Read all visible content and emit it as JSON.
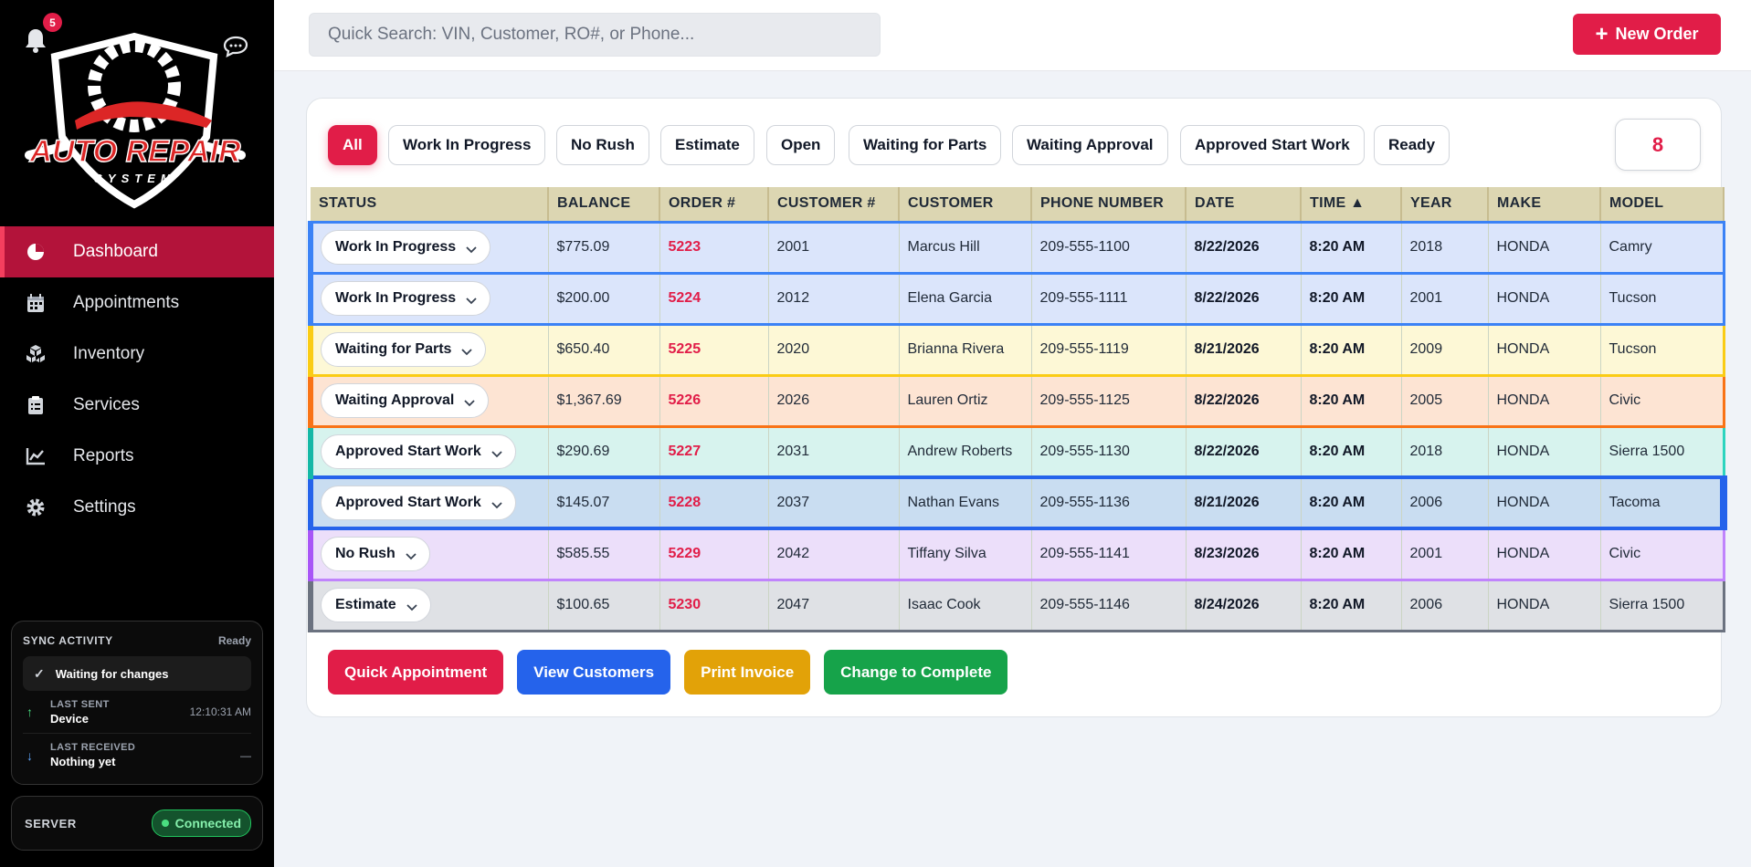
{
  "notifications": {
    "count": "5"
  },
  "brand": {
    "line1": "AUTO REPAIR",
    "line2": "SYSTEM"
  },
  "nav": [
    {
      "label": "Dashboard",
      "icon": "pie-chart-icon",
      "active": true
    },
    {
      "label": "Appointments",
      "icon": "calendar-icon"
    },
    {
      "label": "Inventory",
      "icon": "boxes-icon"
    },
    {
      "label": "Services",
      "icon": "clipboard-icon"
    },
    {
      "label": "Reports",
      "icon": "line-chart-icon"
    },
    {
      "label": "Settings",
      "icon": "gear-icon"
    }
  ],
  "sync": {
    "title": "SYNC ACTIVITY",
    "state": "Ready",
    "message": "Waiting for changes",
    "last_sent_label": "LAST SENT",
    "last_sent_value": "Device",
    "last_sent_time": "12:10:31 AM",
    "last_received_label": "LAST RECEIVED",
    "last_received_value": "Nothing yet",
    "last_received_time": "—"
  },
  "server": {
    "label": "SERVER",
    "status": "Connected"
  },
  "search": {
    "placeholder": "Quick Search: VIN, Customer, RO#, or Phone..."
  },
  "new_order": {
    "label": "New Order"
  },
  "filters": [
    "All",
    "Work In Progress",
    "No Rush",
    "Estimate",
    "Open",
    "Waiting for Parts",
    "Waiting Approval",
    "Approved Start Work",
    "Ready"
  ],
  "active_filter": "All",
  "order_count": "8",
  "columns": [
    "STATUS",
    "BALANCE",
    "ORDER #",
    "CUSTOMER #",
    "CUSTOMER",
    "PHONE NUMBER",
    "DATE",
    "TIME ▲",
    "YEAR",
    "MAKE",
    "MODEL"
  ],
  "rows": [
    {
      "status": "Work In Progress",
      "balance": "$775.09",
      "order": "5223",
      "customer_no": "2001",
      "customer": "Marcus Hill",
      "phone": "209-555-1100",
      "date": "8/22/2026",
      "time": "8:20 AM",
      "year": "2018",
      "make": "HONDA",
      "model": "Camry",
      "color": "blue"
    },
    {
      "status": "Work In Progress",
      "balance": "$200.00",
      "order": "5224",
      "customer_no": "2012",
      "customer": "Elena Garcia",
      "phone": "209-555-1111",
      "date": "8/22/2026",
      "time": "8:20 AM",
      "year": "2001",
      "make": "HONDA",
      "model": "Tucson",
      "color": "blue"
    },
    {
      "status": "Waiting for Parts",
      "balance": "$650.40",
      "order": "5225",
      "customer_no": "2020",
      "customer": "Brianna Rivera",
      "phone": "209-555-1119",
      "date": "8/21/2026",
      "time": "8:20 AM",
      "year": "2009",
      "make": "HONDA",
      "model": "Tucson",
      "color": "yellow"
    },
    {
      "status": "Waiting Approval",
      "balance": "$1,367.69",
      "order": "5226",
      "customer_no": "2026",
      "customer": "Lauren Ortiz",
      "phone": "209-555-1125",
      "date": "8/22/2026",
      "time": "8:20 AM",
      "year": "2005",
      "make": "HONDA",
      "model": "Civic",
      "color": "orange"
    },
    {
      "status": "Approved Start Work",
      "balance": "$290.69",
      "order": "5227",
      "customer_no": "2031",
      "customer": "Andrew Roberts",
      "phone": "209-555-1130",
      "date": "8/22/2026",
      "time": "8:20 AM",
      "year": "2018",
      "make": "HONDA",
      "model": "Sierra 1500",
      "color": "teal"
    },
    {
      "status": "Approved Start Work",
      "balance": "$145.07",
      "order": "5228",
      "customer_no": "2037",
      "customer": "Nathan Evans",
      "phone": "209-555-1136",
      "date": "8/21/2026",
      "time": "8:20 AM",
      "year": "2006",
      "make": "HONDA",
      "model": "Tacoma",
      "color": "navy"
    },
    {
      "status": "No Rush",
      "balance": "$585.55",
      "order": "5229",
      "customer_no": "2042",
      "customer": "Tiffany Silva",
      "phone": "209-555-1141",
      "date": "8/23/2026",
      "time": "8:20 AM",
      "year": "2001",
      "make": "HONDA",
      "model": "Civic",
      "color": "purple"
    },
    {
      "status": "Estimate",
      "balance": "$100.65",
      "order": "5230",
      "customer_no": "2047",
      "customer": "Isaac Cook",
      "phone": "209-555-1146",
      "date": "8/24/2026",
      "time": "8:20 AM",
      "year": "2006",
      "make": "HONDA",
      "model": "Sierra 1500",
      "color": "gray"
    }
  ],
  "actions": [
    {
      "label": "Quick Appointment",
      "color": "#e11d48"
    },
    {
      "label": "View Customers",
      "color": "#2563eb"
    },
    {
      "label": "Print Invoice",
      "color": "#e2a208"
    },
    {
      "label": "Change to Complete",
      "color": "#16a34a"
    }
  ]
}
